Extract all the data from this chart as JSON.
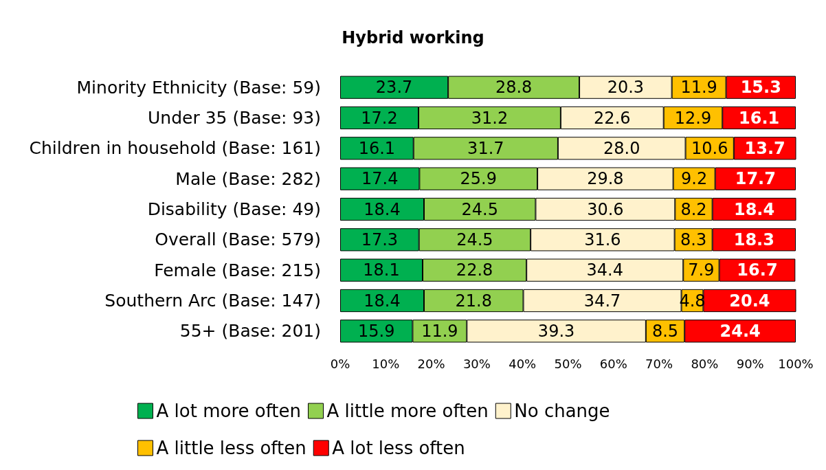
{
  "chart_data": {
    "type": "bar",
    "title": "Hybrid working",
    "orientation": "horizontal",
    "stacked": true,
    "grid": false,
    "legend": "bottom",
    "categories": [
      "Minority Ethnicity (Base: 59)",
      "Under 35 (Base: 93)",
      "Children in household (Base: 161)",
      "Male (Base: 282)",
      "Disability (Base: 49)",
      "Overall (Base: 579)",
      "Female (Base: 215)",
      "Southern Arc (Base: 147)",
      "55+ (Base: 201)"
    ],
    "series": [
      {
        "name": "A lot more often",
        "color": "#00b050",
        "values": [
          23.7,
          17.2,
          16.1,
          17.4,
          18.4,
          17.3,
          18.1,
          18.4,
          15.9
        ],
        "value_labels": [
          "23.7",
          "17.2",
          "16.1",
          "17.4",
          "18.4",
          "17.3",
          "18.1",
          "18.4",
          "15.9"
        ]
      },
      {
        "name": "A little more often",
        "color": "#92d050",
        "values": [
          28.8,
          31.2,
          31.7,
          25.9,
          24.5,
          24.5,
          22.8,
          21.8,
          11.9
        ],
        "value_labels": [
          "28.8",
          "31.2",
          "31.7",
          "25.9",
          "24.5",
          "24.5",
          "22.8",
          "21.8",
          "11.9"
        ]
      },
      {
        "name": "No change",
        "color": "#fff2cc",
        "values": [
          20.3,
          22.6,
          28.0,
          29.8,
          30.6,
          31.6,
          34.4,
          34.7,
          39.3
        ],
        "value_labels": [
          "20.3",
          "22.6",
          "28.0",
          "29.8",
          "30.6",
          "31.6",
          "34.4",
          "34.7",
          "39.3"
        ]
      },
      {
        "name": "A little less often",
        "color": "#ffc000",
        "values": [
          11.9,
          12.9,
          10.6,
          9.2,
          8.2,
          8.3,
          7.9,
          4.8,
          8.5
        ],
        "value_labels": [
          "11.9",
          "12.9",
          "10.6",
          "9.2",
          "8.2",
          "8.3",
          "7.9",
          "4.8",
          "8.5"
        ]
      },
      {
        "name": "A lot less often",
        "color": "#ff0000",
        "values": [
          15.3,
          16.1,
          13.7,
          17.7,
          18.4,
          18.3,
          16.7,
          20.4,
          24.4
        ],
        "value_labels": [
          "15.3",
          "16.1",
          "13.7",
          "17.7",
          "18.4",
          "18.3",
          "16.7",
          "20.4",
          "24.4"
        ]
      }
    ],
    "xlim": [
      0,
      100
    ],
    "xticks": [
      {
        "value": 0,
        "label": "0%"
      },
      {
        "value": 10,
        "label": "10%"
      },
      {
        "value": 20,
        "label": "20%"
      },
      {
        "value": 30,
        "label": "30%"
      },
      {
        "value": 40,
        "label": "40%"
      },
      {
        "value": 50,
        "label": "50%"
      },
      {
        "value": 60,
        "label": "60%"
      },
      {
        "value": 70,
        "label": "70%"
      },
      {
        "value": 80,
        "label": "80%"
      },
      {
        "value": 90,
        "label": "90%"
      },
      {
        "value": 100,
        "label": "100%"
      }
    ]
  }
}
